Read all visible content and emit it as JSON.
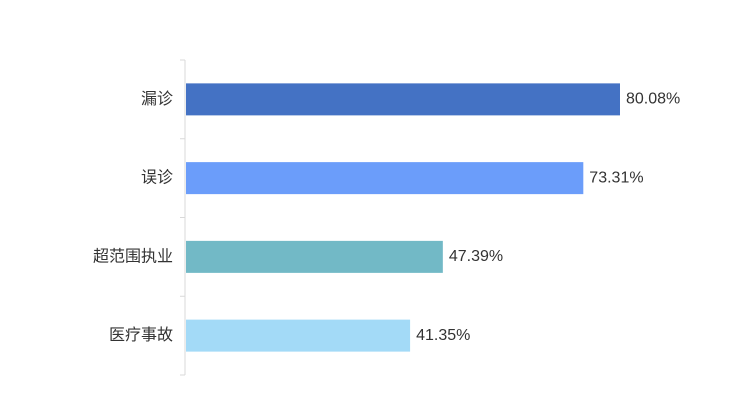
{
  "chart_data": {
    "type": "bar",
    "orientation": "horizontal",
    "title": "",
    "xlabel": "",
    "ylabel": "",
    "categories": [
      "漏诊",
      "误诊",
      "超范围执业",
      "医疗事故"
    ],
    "values": [
      80.08,
      73.31,
      47.39,
      41.35
    ],
    "value_labels": [
      "80.08%",
      "73.31%",
      "47.39%",
      "41.35%"
    ],
    "bar_colors": [
      "#4472c4",
      "#6b9dfa",
      "#72b9c6",
      "#a3daf7"
    ],
    "xlim": [
      0,
      80.08
    ],
    "grid": false,
    "legend": "none"
  }
}
